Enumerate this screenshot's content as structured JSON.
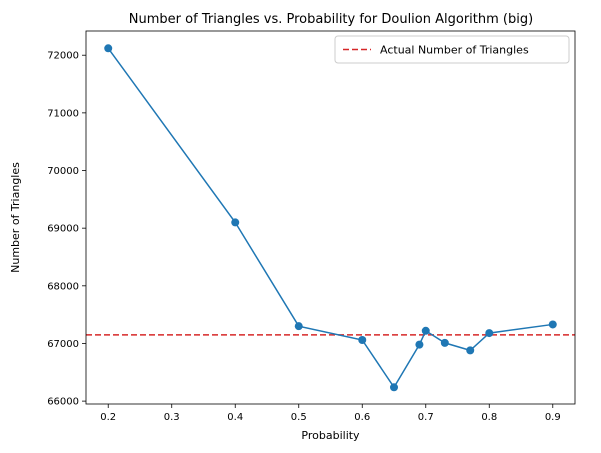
{
  "chart_data": {
    "type": "line",
    "title": "Number of Triangles vs. Probability for Doulion Algorithm (big)",
    "xlabel": "Probability",
    "ylabel": "Number of Triangles",
    "xlim": [
      0.165,
      0.935
    ],
    "ylim": [
      65950,
      72420
    ],
    "xticks": [
      0.2,
      0.3,
      0.4,
      0.5,
      0.6,
      0.7,
      0.8,
      0.9
    ],
    "xtick_labels": [
      "0.2",
      "0.3",
      "0.4",
      "0.5",
      "0.6",
      "0.7",
      "0.8",
      "0.9"
    ],
    "yticks": [
      66000,
      67000,
      68000,
      69000,
      70000,
      71000,
      72000
    ],
    "ytick_labels": [
      "66000",
      "67000",
      "68000",
      "69000",
      "70000",
      "71000",
      "72000"
    ],
    "grid": false,
    "legend_placement": "top-right",
    "series": [
      {
        "color": "#1f77b4",
        "marker": "circle",
        "x": [
          0.2,
          0.4,
          0.5,
          0.6,
          0.65,
          0.69,
          0.7,
          0.73,
          0.77,
          0.8,
          0.9
        ],
        "y": [
          72120,
          69100,
          67300,
          67060,
          66240,
          66980,
          67220,
          67010,
          66880,
          67180,
          67330
        ]
      }
    ],
    "reference_lines": [
      {
        "name": "Actual Number of Triangles",
        "orientation": "horizontal",
        "value": 67150,
        "color": "#d62728",
        "style": "dashed"
      }
    ]
  }
}
